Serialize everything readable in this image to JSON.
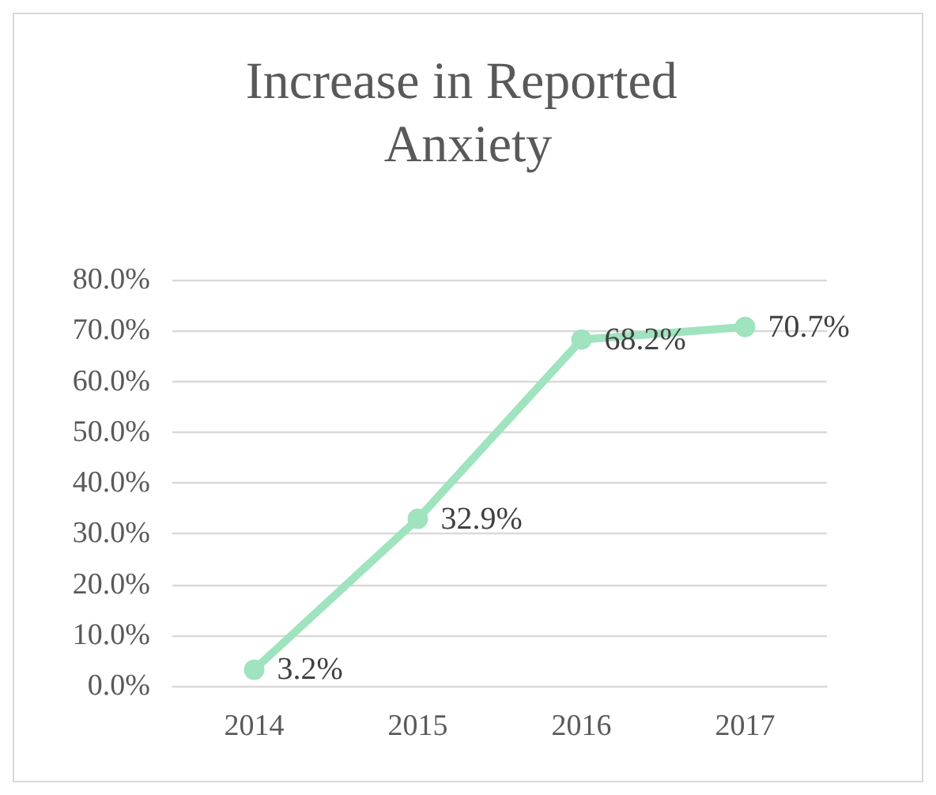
{
  "chart_data": {
    "type": "line",
    "title": "Increase in Reported Anxiety",
    "categories": [
      "2014",
      "2015",
      "2016",
      "2017"
    ],
    "series": [
      {
        "color": "#9fe3bf",
        "values": [
          3.2,
          32.9,
          68.2,
          70.7
        ],
        "value_labels": [
          "3.2%",
          "32.9%",
          "68.2%",
          "70.7%"
        ]
      }
    ],
    "ylim": [
      0,
      80
    ],
    "yticks": [
      {
        "value": 0,
        "label": "0.0%"
      },
      {
        "value": 10,
        "label": "10.0%"
      },
      {
        "value": 20,
        "label": "20.0%"
      },
      {
        "value": 30,
        "label": "30.0%"
      },
      {
        "value": 40,
        "label": "40.0%"
      },
      {
        "value": 50,
        "label": "50.0%"
      },
      {
        "value": 60,
        "label": "60.0%"
      },
      {
        "value": 70,
        "label": "70.0%"
      },
      {
        "value": 80,
        "label": "80.0%"
      }
    ],
    "grid": "y",
    "marker": "circle",
    "line_style": "solid"
  }
}
